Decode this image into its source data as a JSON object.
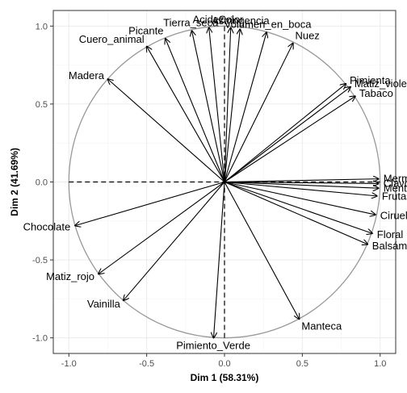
{
  "chart_data": {
    "type": "correlation-circle",
    "xlabel": "Dim 1 (58.31%)",
    "ylabel": "Dim 2 (41.69%)",
    "xlim": [
      -1.1,
      1.1
    ],
    "ylim": [
      -1.1,
      1.1
    ],
    "x_ticks": [
      -1.0,
      -0.5,
      0.0,
      0.5,
      1.0
    ],
    "y_ticks": [
      -1.0,
      -0.5,
      0.0,
      0.5,
      1.0
    ],
    "x_tick_labels": [
      "-1.0",
      "-0.5",
      "0.0",
      "0.5",
      "1.0"
    ],
    "y_tick_labels": [
      "-1.0",
      "-0.5",
      "0.0",
      "0.5",
      "1.0"
    ],
    "grid": true,
    "unit_circle": true,
    "dashed_zero_lines": true,
    "colors": {
      "arrow": "#000000",
      "circle": "#999999",
      "grid": "#ebebeb",
      "panel_border": "#333333"
    },
    "variables": [
      {
        "name": "Acidez",
        "x": -0.1,
        "y": 0.99
      },
      {
        "name": "Color",
        "x": 0.04,
        "y": 0.99
      },
      {
        "name": "Astringencia",
        "x": 0.1,
        "y": 0.98
      },
      {
        "name": "Volumen_en_boca",
        "x": 0.27,
        "y": 0.96
      },
      {
        "name": "Tierra_seca",
        "x": -0.21,
        "y": 0.97
      },
      {
        "name": "Picante",
        "x": -0.38,
        "y": 0.92
      },
      {
        "name": "Cuero_animal",
        "x": -0.5,
        "y": 0.87
      },
      {
        "name": "Madera",
        "x": -0.75,
        "y": 0.66
      },
      {
        "name": "Nuez",
        "x": 0.44,
        "y": 0.89
      },
      {
        "name": "Pimienta",
        "x": 0.78,
        "y": 0.63
      },
      {
        "name": "Matiz_violeta",
        "x": 0.81,
        "y": 0.61
      },
      {
        "name": "Tabaco",
        "x": 0.84,
        "y": 0.55
      },
      {
        "name": "Mermelada",
        "x": 0.99,
        "y": 0.02
      },
      {
        "name": "Clavo_de_olor",
        "x": 0.99,
        "y": -0.01
      },
      {
        "name": "Mentas",
        "x": 0.99,
        "y": -0.04
      },
      {
        "name": "Frutas",
        "x": 0.98,
        "y": -0.09
      },
      {
        "name": "Ciruela",
        "x": 0.97,
        "y": -0.21
      },
      {
        "name": "Floral",
        "x": 0.95,
        "y": -0.33
      },
      {
        "name": "Balsámico",
        "x": 0.92,
        "y": -0.4
      },
      {
        "name": "Manteca",
        "x": 0.48,
        "y": -0.88
      },
      {
        "name": "Pimiento_Verde",
        "x": -0.07,
        "y": -1.0
      },
      {
        "name": "Vainilla",
        "x": -0.65,
        "y": -0.76
      },
      {
        "name": "Matiz_rojo",
        "x": -0.81,
        "y": -0.59
      },
      {
        "name": "Chocolate",
        "x": -0.96,
        "y": -0.28
      }
    ]
  }
}
